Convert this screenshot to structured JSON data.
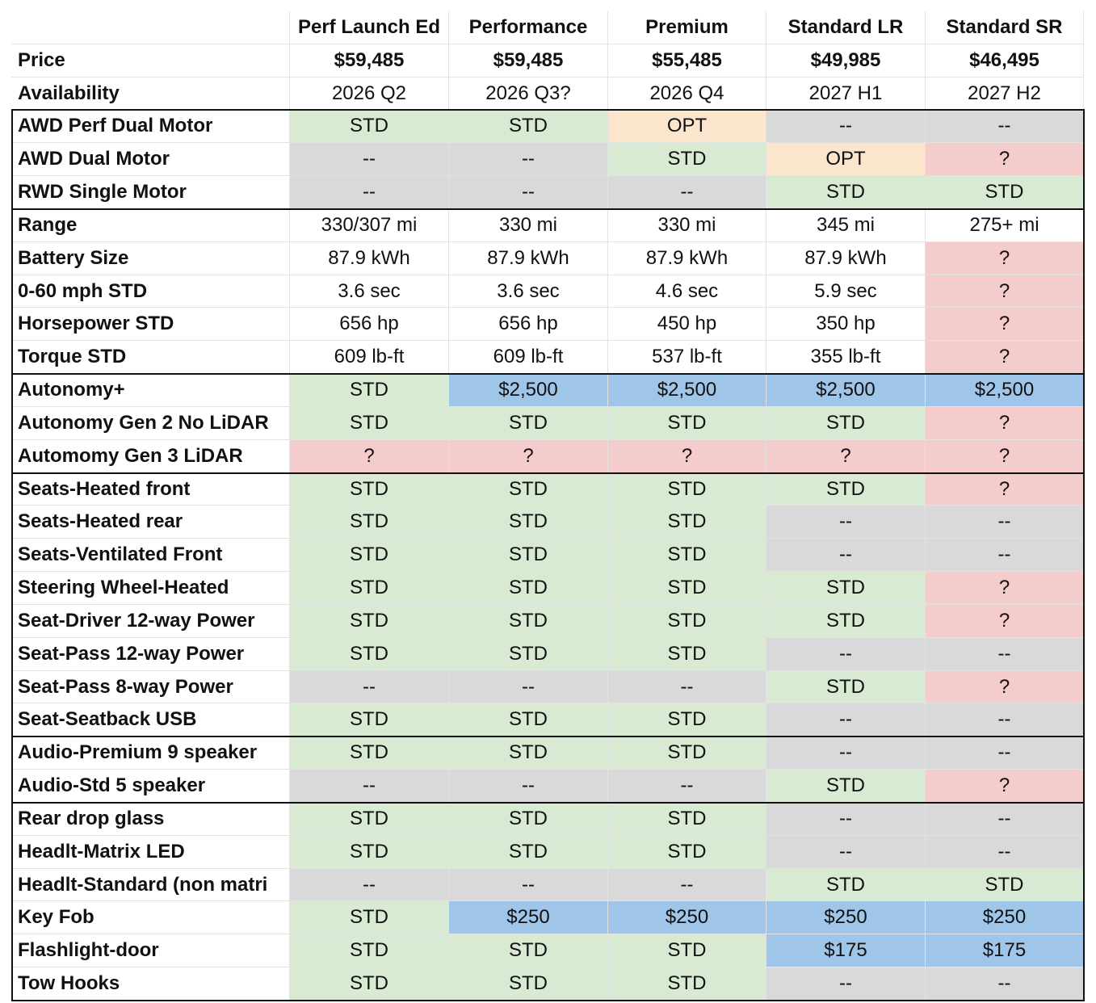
{
  "header": [
    "Perf Launch Ed",
    "Performance",
    "Premium",
    "Standard LR",
    "Standard SR"
  ],
  "rows_top": [
    {
      "label": "Price",
      "cells": [
        "$59,485",
        "$59,485",
        "$55,485",
        "$49,985",
        "$46,495"
      ]
    },
    {
      "label": "Availability",
      "cells": [
        "2026 Q2",
        "2026 Q3?",
        "2026 Q4",
        "2027 H1",
        "2027 H2"
      ]
    }
  ],
  "sections": [
    [
      {
        "label": "AWD Perf Dual Motor",
        "cells": [
          "STD",
          "STD",
          "OPT",
          "--",
          "--"
        ]
      },
      {
        "label": "AWD Dual Motor",
        "cells": [
          "--",
          "--",
          "STD",
          "OPT",
          "?"
        ]
      },
      {
        "label": "RWD Single Motor",
        "cells": [
          "--",
          "--",
          "--",
          "STD",
          "STD"
        ]
      }
    ],
    [
      {
        "label": "Range",
        "cells": [
          "330/307 mi",
          "330 mi",
          "330 mi",
          "345 mi",
          "275+ mi"
        ]
      },
      {
        "label": "Battery Size",
        "cells": [
          "87.9 kWh",
          "87.9 kWh",
          "87.9 kWh",
          "87.9 kWh",
          "?"
        ]
      },
      {
        "label": "0-60 mph STD",
        "cells": [
          "3.6 sec",
          "3.6 sec",
          "4.6 sec",
          "5.9 sec",
          "?"
        ]
      },
      {
        "label": "Horsepower STD",
        "cells": [
          "656 hp",
          "656 hp",
          "450 hp",
          "350 hp",
          "?"
        ]
      },
      {
        "label": "Torque STD",
        "cells": [
          "609 lb-ft",
          "609 lb-ft",
          "537 lb-ft",
          "355 lb-ft",
          "?"
        ]
      }
    ],
    [
      {
        "label": "Autonomy+",
        "cells": [
          "STD",
          "$2,500",
          "$2,500",
          "$2,500",
          "$2,500"
        ]
      },
      {
        "label": "Autonomy Gen 2 No LiDAR",
        "cells": [
          "STD",
          "STD",
          "STD",
          "STD",
          "?"
        ]
      },
      {
        "label": "Automomy Gen 3 LiDAR",
        "cells": [
          "?",
          "?",
          "?",
          "?",
          "?"
        ]
      }
    ],
    [
      {
        "label": "Seats-Heated front",
        "cells": [
          "STD",
          "STD",
          "STD",
          "STD",
          "?"
        ]
      },
      {
        "label": "Seats-Heated rear",
        "cells": [
          "STD",
          "STD",
          "STD",
          "--",
          "--"
        ]
      },
      {
        "label": "Seats-Ventilated Front",
        "cells": [
          "STD",
          "STD",
          "STD",
          "--",
          "--"
        ]
      },
      {
        "label": "Steering Wheel-Heated",
        "cells": [
          "STD",
          "STD",
          "STD",
          "STD",
          "?"
        ]
      },
      {
        "label": "Seat-Driver 12-way Power",
        "cells": [
          "STD",
          "STD",
          "STD",
          "STD",
          "?"
        ]
      },
      {
        "label": "Seat-Pass 12-way Power",
        "cells": [
          "STD",
          "STD",
          "STD",
          "--",
          "--"
        ]
      },
      {
        "label": "Seat-Pass 8-way Power",
        "cells": [
          "--",
          "--",
          "--",
          "STD",
          "?"
        ]
      },
      {
        "label": "Seat-Seatback USB",
        "cells": [
          "STD",
          "STD",
          "STD",
          "--",
          "--"
        ]
      }
    ],
    [
      {
        "label": "Audio-Premium 9 speaker",
        "cells": [
          "STD",
          "STD",
          "STD",
          "--",
          "--"
        ]
      },
      {
        "label": "Audio-Std 5 speaker",
        "cells": [
          "--",
          "--",
          "--",
          "STD",
          "?"
        ]
      }
    ],
    [
      {
        "label": "Rear drop glass",
        "cells": [
          "STD",
          "STD",
          "STD",
          "--",
          "--"
        ]
      },
      {
        "label": "Headlt-Matrix LED",
        "cells": [
          "STD",
          "STD",
          "STD",
          "--",
          "--"
        ]
      },
      {
        "label": "Headlt-Standard (non matri",
        "cells": [
          "--",
          "--",
          "--",
          "STD",
          "STD"
        ]
      },
      {
        "label": "Key Fob",
        "cells": [
          "STD",
          "$250",
          "$250",
          "$250",
          "$250"
        ]
      },
      {
        "label": "Flashlight-door",
        "cells": [
          "STD",
          "STD",
          "STD",
          "$175",
          "$175"
        ]
      },
      {
        "label": "Tow Hooks",
        "cells": [
          "STD",
          "STD",
          "STD",
          "--",
          "--"
        ]
      }
    ]
  ]
}
